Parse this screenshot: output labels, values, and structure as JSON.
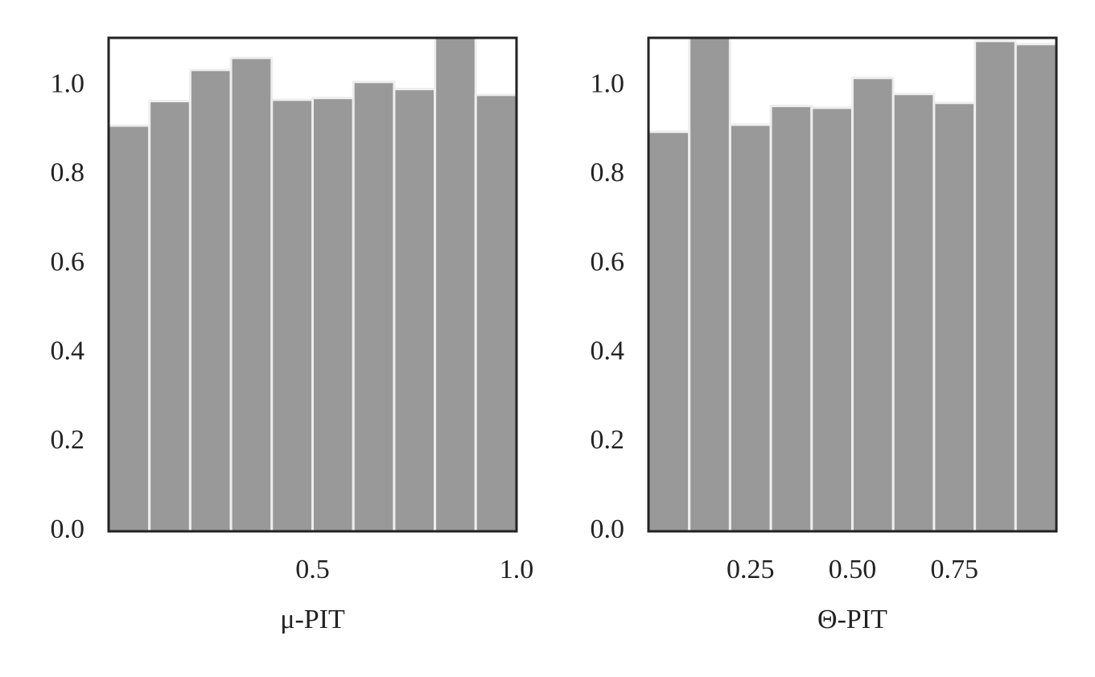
{
  "chart_data": [
    {
      "type": "histogram",
      "xlabel": "μ-PIT",
      "bins": [
        0,
        0.1,
        0.2,
        0.3,
        0.4,
        0.5,
        0.6,
        0.7,
        0.8,
        0.9,
        1.0
      ],
      "values": [
        0.911,
        0.966,
        1.036,
        1.063,
        0.969,
        0.973,
        1.009,
        0.993,
        1.12,
        0.98
      ],
      "color": "#999999",
      "xlim": [
        0,
        1
      ],
      "ylim": [
        0,
        1.108
      ],
      "xticks": [
        0.5,
        {
          "value": 1.0,
          "label": "1.0"
        }
      ],
      "yticks": [
        {
          "value": 0,
          "label": "0.0"
        },
        0.2,
        0.4,
        0.6,
        0.8,
        {
          "value": 1.0,
          "label": "1.0"
        }
      ]
    },
    {
      "type": "histogram",
      "xlabel": "Θ-PIT",
      "bins": [
        0,
        0.1,
        0.2,
        0.3,
        0.4,
        0.5,
        0.6,
        0.7,
        0.8,
        0.9,
        1.0
      ],
      "values": [
        0.897,
        1.12,
        0.913,
        0.955,
        0.951,
        1.018,
        0.982,
        0.962,
        1.101,
        1.094
      ],
      "color": "#999999",
      "xlim": [
        0,
        1
      ],
      "ylim": [
        0,
        1.108
      ],
      "xticks": [
        0.25,
        {
          "value": 0.5,
          "label": "0.50"
        },
        0.75
      ],
      "yticks": [
        {
          "value": 0,
          "label": "0.0"
        },
        0.2,
        0.4,
        0.6,
        0.8,
        {
          "value": 1.0,
          "label": "1.0"
        }
      ]
    }
  ]
}
